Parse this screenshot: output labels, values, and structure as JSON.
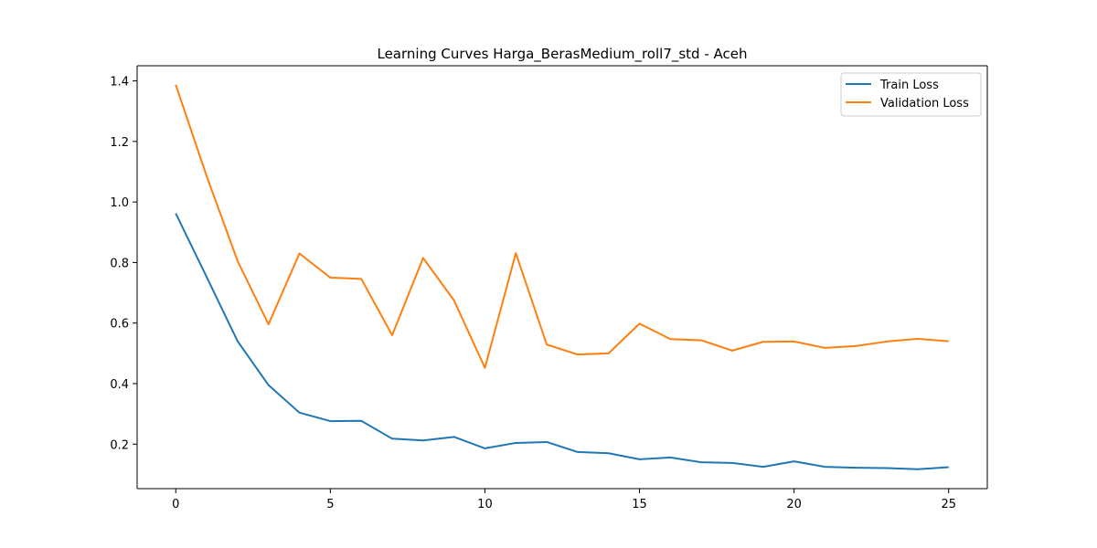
{
  "chart_data": {
    "type": "line",
    "title": "Learning Curves Harga_BerasMedium_roll7_std - Aceh",
    "xlabel": "",
    "ylabel": "",
    "xlim": [
      -1.25,
      26.25
    ],
    "ylim": [
      0.053,
      1.45
    ],
    "xticks": [
      0,
      5,
      10,
      15,
      20,
      25
    ],
    "yticks": [
      0.2,
      0.4,
      0.6,
      0.8,
      1.0,
      1.2,
      1.4
    ],
    "grid": false,
    "legend_position": "top-right",
    "x": [
      0,
      1,
      2,
      3,
      4,
      5,
      6,
      7,
      8,
      9,
      10,
      11,
      12,
      13,
      14,
      15,
      16,
      17,
      18,
      19,
      20,
      21,
      22,
      23,
      24,
      25
    ],
    "series": [
      {
        "name": "Train Loss",
        "color": "#1f77b4",
        "values": [
          0.962,
          0.752,
          0.54,
          0.395,
          0.304,
          0.276,
          0.277,
          0.218,
          0.212,
          0.224,
          0.186,
          0.204,
          0.207,
          0.174,
          0.17,
          0.15,
          0.156,
          0.14,
          0.138,
          0.125,
          0.143,
          0.125,
          0.122,
          0.121,
          0.117,
          0.124
        ]
      },
      {
        "name": "Validation Loss",
        "color": "#ff7f0e",
        "values": [
          1.387,
          1.085,
          0.805,
          0.596,
          0.83,
          0.75,
          0.746,
          0.56,
          0.815,
          0.675,
          0.452,
          0.831,
          0.529,
          0.496,
          0.5,
          0.598,
          0.547,
          0.543,
          0.509,
          0.538,
          0.539,
          0.518,
          0.524,
          0.539,
          0.548,
          0.54
        ]
      }
    ]
  }
}
